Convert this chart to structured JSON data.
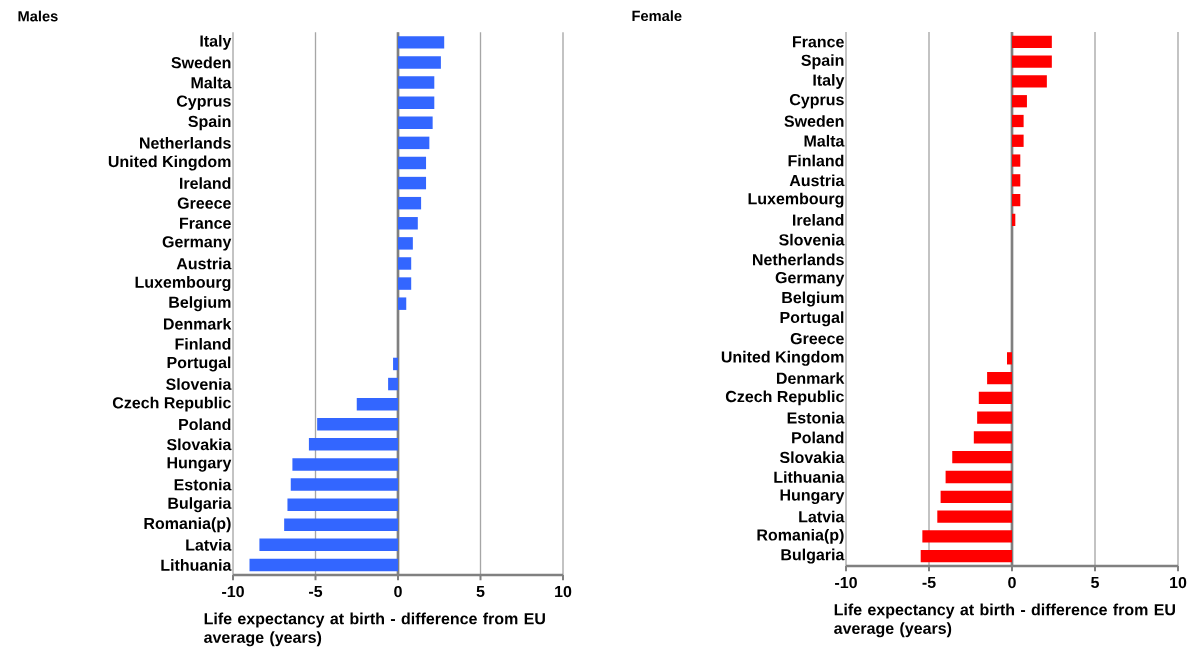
{
  "chart_data": [
    {
      "type": "bar",
      "orientation": "horizontal",
      "title": "Males",
      "xlabel": "Life expectancy at birth - difference from EU average (years)",
      "color": "#3366ff",
      "xlim": [
        -10,
        10
      ],
      "xticks": [
        -10,
        -5,
        0,
        5,
        10
      ],
      "grid": "x",
      "categories": [
        "Italy",
        "Sweden",
        "Malta",
        "Cyprus",
        "Spain",
        "Netherlands",
        "United Kingdom",
        "Ireland",
        "Greece",
        "France",
        "Germany",
        "Austria",
        "Luxembourg",
        "Belgium",
        "Denmark",
        "Finland",
        "Portugal",
        "Slovenia",
        "Czech Republic",
        "Poland",
        "Slovakia",
        "Hungary",
        "Estonia",
        "Bulgaria",
        "Romania(p)",
        "Latvia",
        "Lithuania"
      ],
      "values": [
        2.8,
        2.6,
        2.2,
        2.2,
        2.1,
        1.9,
        1.7,
        1.7,
        1.4,
        1.2,
        0.9,
        0.8,
        0.8,
        0.5,
        0,
        0,
        -0.3,
        -0.6,
        -2.5,
        -4.9,
        -5.4,
        -6.4,
        -6.5,
        -6.7,
        -6.9,
        -8.4,
        -9.0
      ]
    },
    {
      "type": "bar",
      "orientation": "horizontal",
      "title": "Female",
      "xlabel": "Life expectancy at birth - difference from EU average (years)",
      "color": "#ff0000",
      "xlim": [
        -10,
        10
      ],
      "xticks": [
        -10,
        -5,
        0,
        5,
        10
      ],
      "grid": "x",
      "categories": [
        "France",
        "Spain",
        "Italy",
        "Cyprus",
        "Sweden",
        "Malta",
        "Finland",
        "Austria",
        "Luxembourg",
        "Ireland",
        "Slovenia",
        "Netherlands",
        "Germany",
        "Belgium",
        "Portugal",
        "Greece",
        "United Kingdom",
        "Denmark",
        "Czech Republic",
        "Estonia",
        "Poland",
        "Slovakia",
        "Lithuania",
        "Hungary",
        "Latvia",
        "Romania(p)",
        "Bulgaria"
      ],
      "values": [
        2.4,
        2.4,
        2.1,
        0.9,
        0.7,
        0.7,
        0.5,
        0.5,
        0.5,
        0.2,
        0,
        0,
        0,
        0,
        0,
        0,
        -0.3,
        -1.5,
        -2.0,
        -2.1,
        -2.3,
        -3.6,
        -4.0,
        -4.3,
        -4.5,
        -5.4,
        -5.5
      ]
    }
  ]
}
